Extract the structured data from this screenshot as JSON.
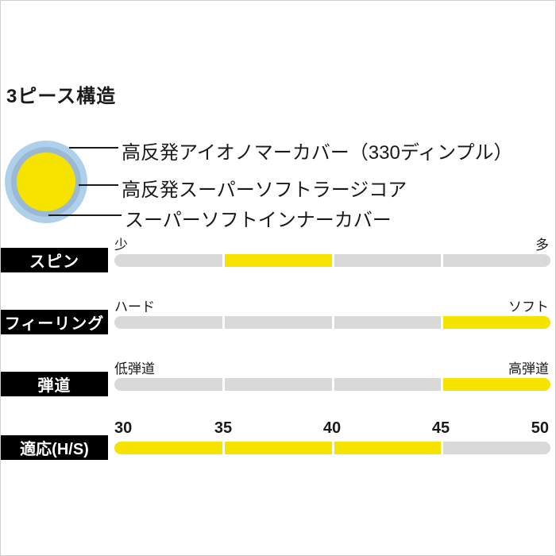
{
  "title": "3ピース構造",
  "ball": {
    "labels": [
      "高反発アイオノマーカバー（330ディンプル）",
      "高反発スーパーソフトラージコア",
      "スーパーソフトインナーカバー"
    ],
    "colors": {
      "cover": "#aed0ea",
      "inner_cover": "#9cb9d4",
      "core": "#f6e400"
    }
  },
  "colors": {
    "bar_track": "#d9d9d9",
    "bar_highlight": "#f6e400",
    "row_label_bg": "#000000",
    "row_label_fg": "#ffffff"
  },
  "chart_data": {
    "type": "bar",
    "title": "3ピース構造",
    "layout": {
      "segments_per_bar": 4,
      "tick_positions_pct": [
        25,
        50,
        75
      ]
    },
    "scales": [
      {
        "label": "スピン",
        "left": "少",
        "right": "多",
        "range_pct": [
          25,
          50
        ]
      },
      {
        "label": "フィーリング",
        "left": "ハード",
        "right": "ソフト",
        "range_pct": [
          75,
          100
        ]
      },
      {
        "label": "弾道",
        "left": "低弾道",
        "right": "高弾道",
        "range_pct": [
          75,
          100
        ]
      },
      {
        "label": "適応(H/S)",
        "ticks": [
          "30",
          "35",
          "40",
          "45",
          "50"
        ],
        "range_values": [
          30,
          45
        ],
        "range_pct": [
          0,
          75
        ]
      }
    ]
  }
}
